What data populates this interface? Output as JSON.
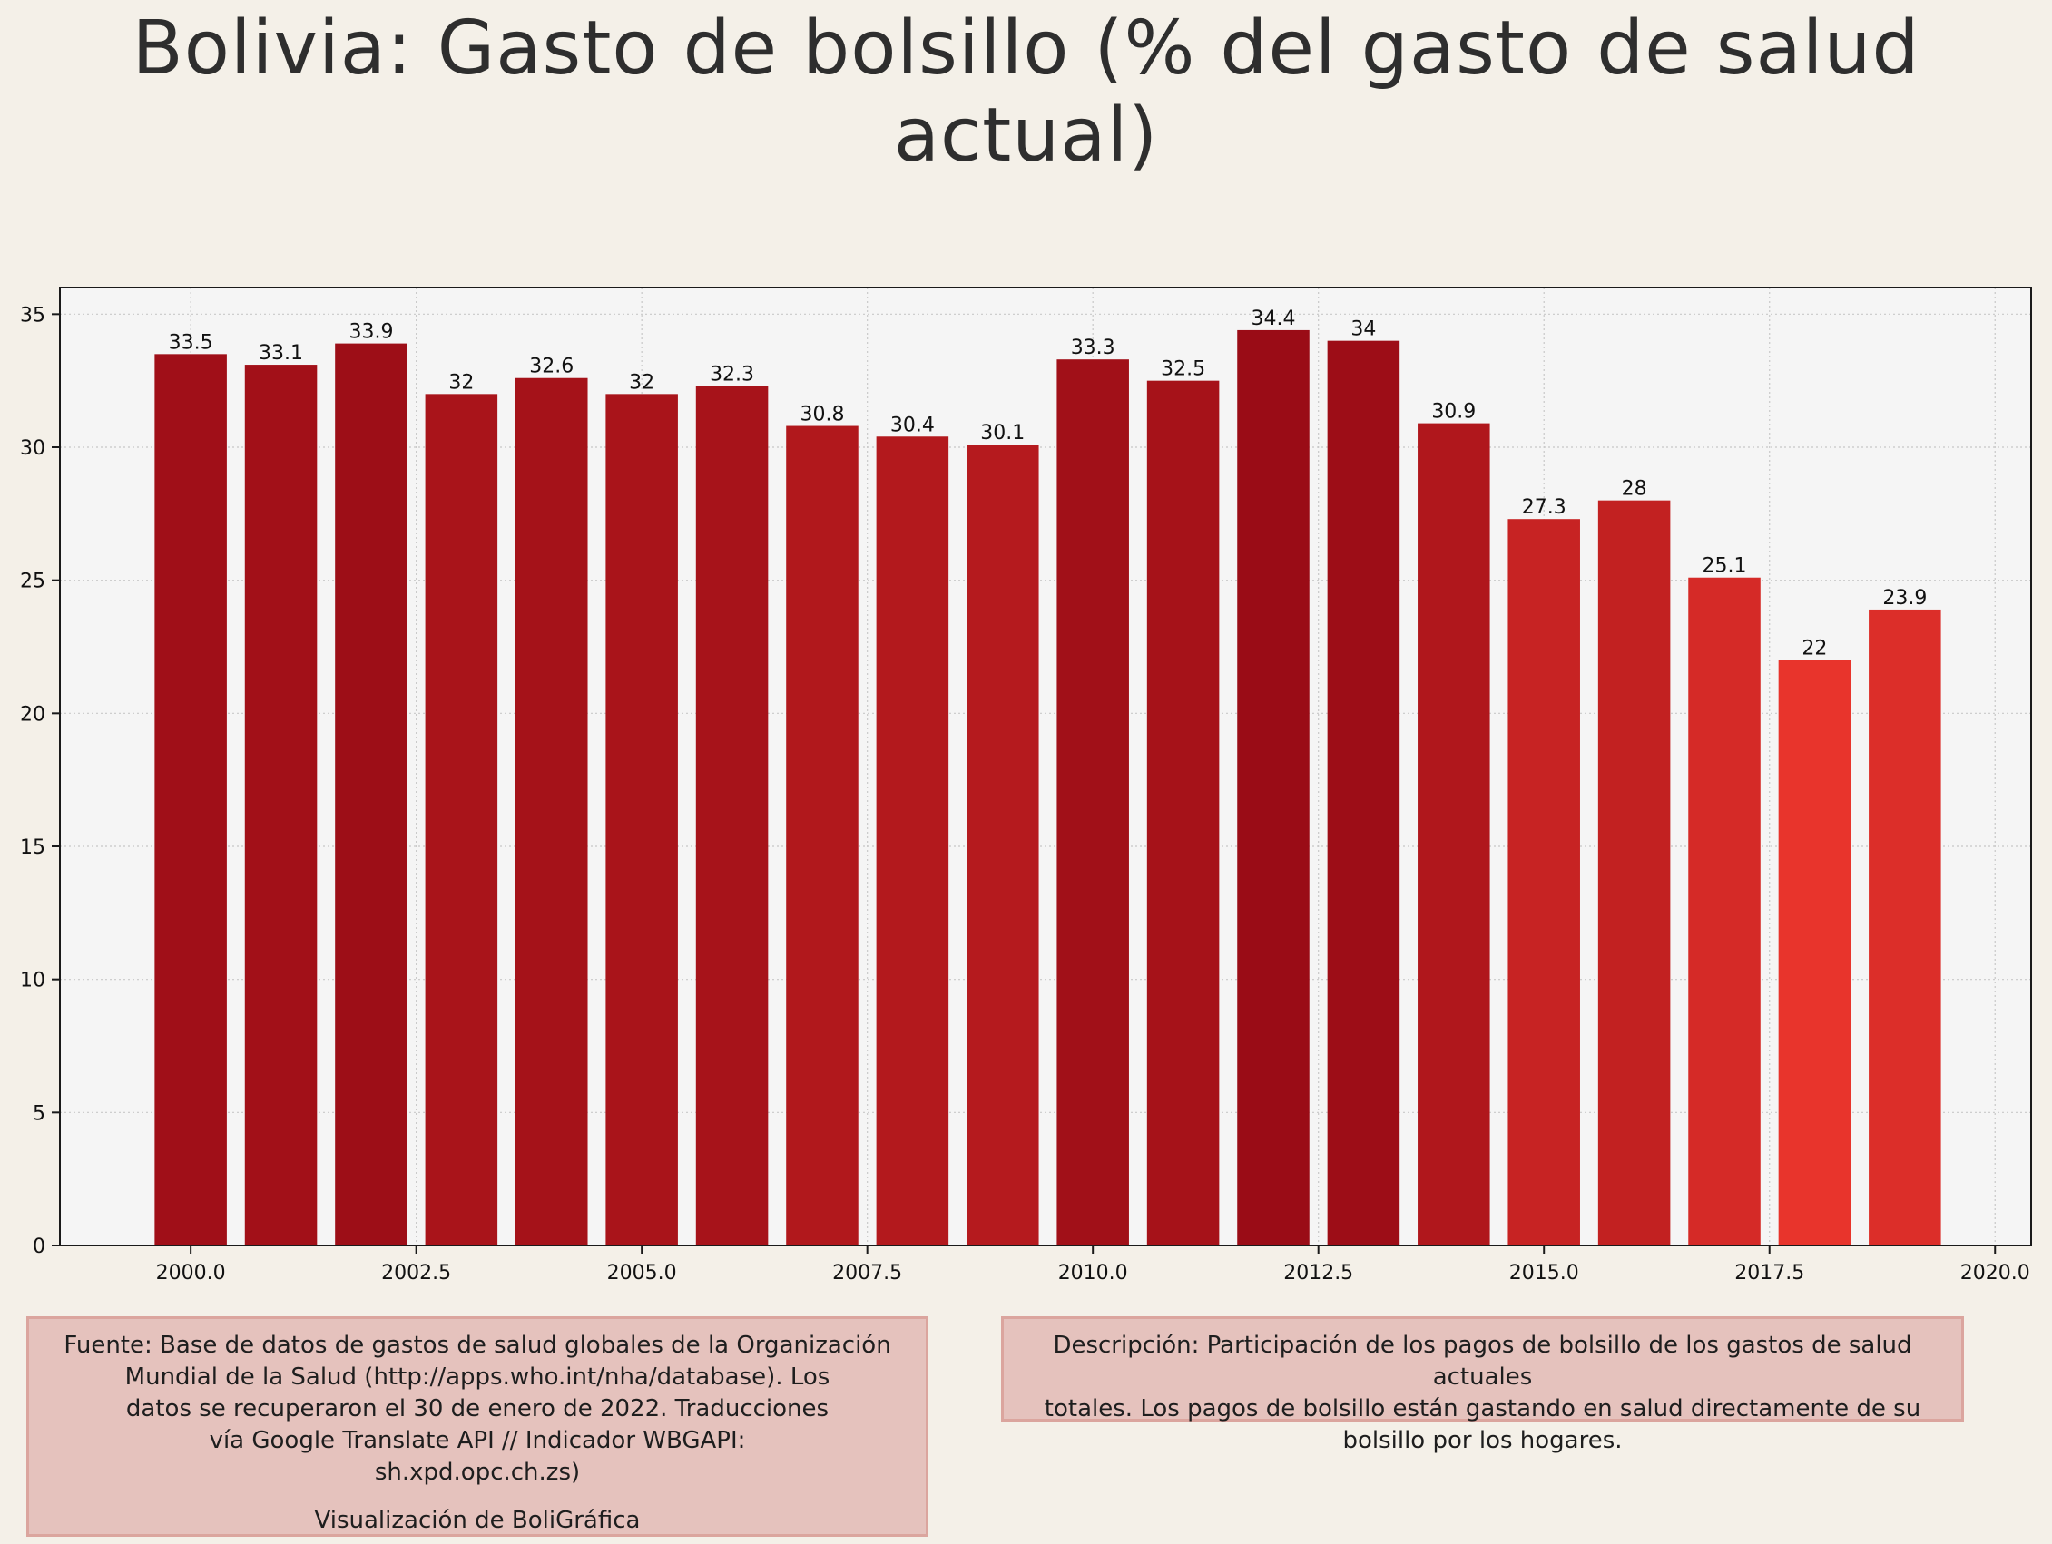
{
  "chart_data": {
    "type": "bar",
    "title": "Bolivia:  Gasto de bolsillo (% del gasto de salud actual)",
    "xlabel": "",
    "ylabel": "",
    "x": [
      2000,
      2001,
      2002,
      2003,
      2004,
      2005,
      2006,
      2007,
      2008,
      2009,
      2010,
      2011,
      2012,
      2013,
      2014,
      2015,
      2016,
      2017,
      2018,
      2019
    ],
    "values": [
      33.5,
      33.1,
      33.9,
      32,
      32.6,
      32,
      32.3,
      30.8,
      30.4,
      30.1,
      33.3,
      32.5,
      34.4,
      34,
      30.9,
      27.3,
      28,
      25.1,
      22,
      23.9
    ],
    "value_labels": [
      "33.5",
      "33.1",
      "33.9",
      "32",
      "32.6",
      "32",
      "32.3",
      "30.8",
      "30.4",
      "30.1",
      "33.3",
      "32.5",
      "34.4",
      "34",
      "30.9",
      "27.3",
      "28",
      "25.1",
      "22",
      "23.9"
    ],
    "xlim": [
      1998.55,
      2020.4
    ],
    "ylim": [
      0,
      36
    ],
    "xticks": [
      2000.0,
      2002.5,
      2005.0,
      2007.5,
      2010.0,
      2012.5,
      2015.0,
      2017.5,
      2020.0
    ],
    "xtick_labels": [
      "2000.0",
      "2002.5",
      "2005.0",
      "2007.5",
      "2010.0",
      "2012.5",
      "2015.0",
      "2017.5",
      "2020.0"
    ],
    "yticks": [
      0,
      5,
      10,
      15,
      20,
      25,
      30,
      35
    ],
    "ytick_labels": [
      "0",
      "5",
      "10",
      "15",
      "20",
      "25",
      "30",
      "35"
    ],
    "grid": true,
    "legend": "none",
    "colors": {
      "bar_dark": "#9a0c16",
      "bar_light": "#e8342c",
      "plot_background": "#f5f5f5",
      "page_background": "#f4f0e8",
      "grid": "#c8c8c8"
    }
  },
  "notes": {
    "source_lines": [
      "Fuente: Base de datos de gastos de salud globales de la Organización",
      "Mundial de la Salud (http://apps.who.int/nha/database). Los",
      "datos se recuperaron el 30 de enero de 2022. Traducciones",
      "vía Google Translate API // Indicador WBGAPI:",
      "sh.xpd.opc.ch.zs)"
    ],
    "credit": "Visualización de BoliGráfica",
    "description_lines": [
      "Descripción: Participación de los pagos de bolsillo de los gastos de salud actuales",
      "totales. Los pagos de bolsillo están gastando en salud directamente de su",
      "bolsillo por los hogares."
    ]
  }
}
